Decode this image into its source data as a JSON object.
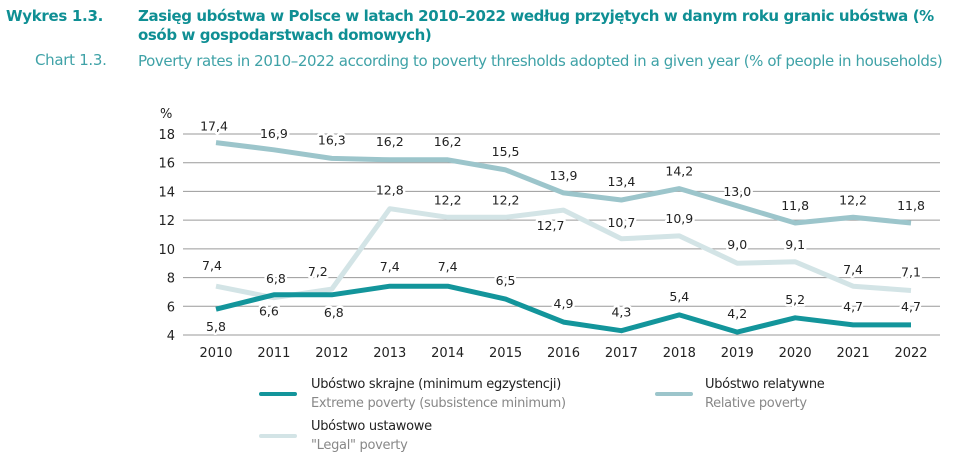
{
  "header": {
    "label_pl": "Wykres 1.3.",
    "title_pl": "Zasięg ubóstwa w Polsce w latach 2010–2022 według przyjętych w danym roku granic ubóstwa (% osób w gospodarstwach domowych)",
    "label_en": "Chart 1.3.",
    "title_en": "Poverty rates in 2010–2022 according to poverty thresholds adopted in a given year (% of people in households)"
  },
  "chart_data": {
    "type": "line",
    "title": "Zasięg ubóstwa w Polsce w latach 2010–2022 według przyjętych w danym roku granic ubóstwa (% osób w gospodarstwach domowych)",
    "subtitle": "Poverty rates in 2010–2022 according to poverty thresholds adopted in a given year (% of people in households)",
    "ylabel": "%",
    "xlabel": "",
    "x": [
      "2010",
      "2011",
      "2012",
      "2013",
      "2014",
      "2015",
      "2016",
      "2017",
      "2018",
      "2019",
      "2020",
      "2021",
      "2022"
    ],
    "ylim": [
      4,
      18
    ],
    "yticks": [
      "4",
      "6",
      "8",
      "10",
      "12",
      "14",
      "16",
      "18"
    ],
    "grid": true,
    "legend_position": "bottom",
    "series": [
      {
        "key": "relative",
        "name": "Ubóstwo relatywne",
        "name_en": "Relative poverty",
        "color": "#9cc5cb",
        "values": [
          17.4,
          16.9,
          16.3,
          16.2,
          16.2,
          15.5,
          13.9,
          13.4,
          14.2,
          13.0,
          11.8,
          12.2,
          11.8
        ],
        "labels": [
          "17,4",
          "16,9",
          "16,3",
          "16,2",
          "16,2",
          "15,5",
          "13,9",
          "13,4",
          "14,2",
          "13,0",
          "11,8",
          "12,2",
          "11,8"
        ]
      },
      {
        "key": "legal",
        "name": "Ubóstwo ustawowe",
        "name_en": "\"Legal\" poverty",
        "color": "#d3e4e6",
        "values": [
          7.4,
          6.6,
          7.2,
          12.8,
          12.2,
          12.2,
          12.7,
          10.7,
          10.9,
          9.0,
          9.1,
          7.4,
          7.1
        ],
        "labels": [
          "7,4",
          "6,6",
          "7,2",
          "12,8",
          "12,2",
          "12,2",
          "12,7",
          "10,7",
          "10,9",
          "9,0",
          "9,1",
          "7,4",
          "7,1"
        ]
      },
      {
        "key": "extreme",
        "name": "Ubóstwo skrajne (minimum egzystencji)",
        "name_en": "Extreme poverty (subsistence minimum)",
        "color": "#13959b",
        "values": [
          5.8,
          6.8,
          6.8,
          7.4,
          7.4,
          6.5,
          4.9,
          4.3,
          5.4,
          4.2,
          5.2,
          4.7,
          4.7
        ],
        "labels": [
          "5,8",
          "6,8",
          "6,8",
          "7,4",
          "7,4",
          "6,5",
          "4,9",
          "4,3",
          "5,4",
          "4,2",
          "5,2",
          "4,7",
          "4,7"
        ]
      }
    ]
  }
}
